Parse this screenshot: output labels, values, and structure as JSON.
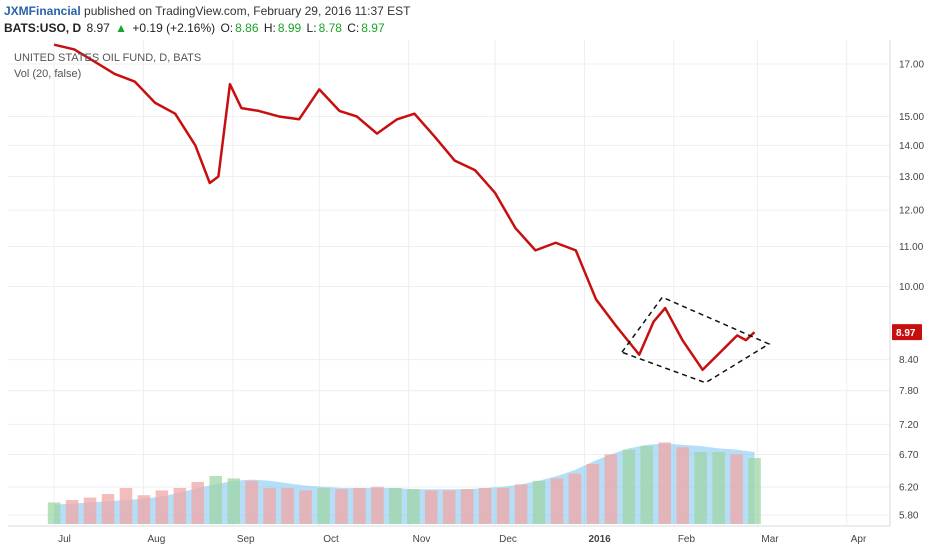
{
  "header": {
    "author": "JXMFinancial",
    "published_text": "published on TradingView.com, February 29, 2016 11:37 EST",
    "symbol": "BATS:USO, D",
    "last": "8.97",
    "up_arrow": "▲",
    "change": "+0.19 (+2.16%)",
    "o_label": "O:",
    "o_value": "8.86",
    "h_label": "H:",
    "h_value": "8.99",
    "l_label": "L:",
    "l_value": "8.78",
    "c_label": "C:",
    "c_value": "8.97"
  },
  "legend": {
    "title": "UNITED STATES OIL FUND, D, BATS",
    "volume": "Vol (20, false)"
  },
  "colors": {
    "price_line": "#c80f0f",
    "badge": "#c80f0f",
    "vol_up": "#9fd6a6",
    "vol_down": "#f0a7a7",
    "vol_bar": "#9aa6e6",
    "vol_ma_fill": "#86c8f2",
    "grid": "#eceff3"
  },
  "chart_data": {
    "type": "line",
    "y_scale": "log",
    "ylim": [
      5.65,
      18.0
    ],
    "y_ticks": [
      "17.00",
      "15.00",
      "14.00",
      "13.00",
      "12.00",
      "11.00",
      "10.00",
      "8.40",
      "7.80",
      "7.20",
      "6.70",
      "6.20",
      "5.80"
    ],
    "y_tick_values": [
      17.0,
      15.0,
      14.0,
      13.0,
      12.0,
      11.0,
      10.0,
      8.4,
      7.8,
      7.2,
      6.7,
      6.2,
      5.8
    ],
    "x_ticks": [
      "Jul",
      "Aug",
      "Sep",
      "Oct",
      "Nov",
      "Dec",
      "2016",
      "Feb",
      "Mar",
      "Apr"
    ],
    "last_price_label": "8.97",
    "last_price": 8.97,
    "x": [
      "2015-07-01",
      "2015-07-08",
      "2015-07-15",
      "2015-07-22",
      "2015-07-29",
      "2015-08-05",
      "2015-08-12",
      "2015-08-19",
      "2015-08-24",
      "2015-08-27",
      "2015-08-31",
      "2015-09-04",
      "2015-09-10",
      "2015-09-17",
      "2015-09-24",
      "2015-10-01",
      "2015-10-08",
      "2015-10-14",
      "2015-10-21",
      "2015-10-28",
      "2015-11-03",
      "2015-11-10",
      "2015-11-17",
      "2015-11-24",
      "2015-12-01",
      "2015-12-08",
      "2015-12-15",
      "2015-12-22",
      "2015-12-29",
      "2016-01-05",
      "2016-01-12",
      "2016-01-20",
      "2016-01-25",
      "2016-01-29",
      "2016-02-04",
      "2016-02-11",
      "2016-02-18",
      "2016-02-23",
      "2016-02-26",
      "2016-02-29"
    ],
    "series": [
      {
        "values": [
          17.8,
          17.6,
          17.1,
          16.6,
          16.3,
          15.5,
          15.1,
          14.0,
          12.8,
          13.0,
          16.2,
          15.3,
          15.2,
          15.0,
          14.9,
          16.0,
          15.2,
          15.0,
          14.4,
          14.9,
          15.1,
          14.3,
          13.5,
          13.2,
          12.5,
          11.5,
          10.9,
          11.1,
          10.9,
          9.7,
          9.1,
          8.5,
          9.2,
          9.5,
          8.8,
          8.2,
          8.6,
          8.9,
          8.8,
          8.97
        ]
      }
    ],
    "volume": {
      "name": "Vol (20, false)",
      "values": [
        0.18,
        0.2,
        0.22,
        0.25,
        0.3,
        0.24,
        0.28,
        0.3,
        0.35,
        0.4,
        0.38,
        0.36,
        0.3,
        0.3,
        0.28,
        0.3,
        0.29,
        0.3,
        0.31,
        0.3,
        0.29,
        0.28,
        0.28,
        0.29,
        0.3,
        0.3,
        0.33,
        0.36,
        0.38,
        0.42,
        0.5,
        0.58,
        0.62,
        0.65,
        0.68,
        0.64,
        0.6,
        0.6,
        0.58,
        0.55
      ],
      "ma": [
        0.16,
        0.17,
        0.18,
        0.19,
        0.2,
        0.21,
        0.23,
        0.26,
        0.3,
        0.33,
        0.36,
        0.37,
        0.36,
        0.34,
        0.32,
        0.31,
        0.3,
        0.3,
        0.3,
        0.3,
        0.29,
        0.29,
        0.29,
        0.29,
        0.3,
        0.31,
        0.33,
        0.36,
        0.4,
        0.45,
        0.52,
        0.58,
        0.63,
        0.66,
        0.67,
        0.66,
        0.65,
        0.63,
        0.62,
        0.6
      ]
    },
    "annotation": {
      "type": "diamond-pattern",
      "points": [
        [
          "2016-01-14",
          8.55
        ],
        [
          "2016-01-28",
          9.75
        ],
        [
          "2016-03-05",
          8.72
        ],
        [
          "2016-02-12",
          7.95
        ]
      ]
    }
  }
}
